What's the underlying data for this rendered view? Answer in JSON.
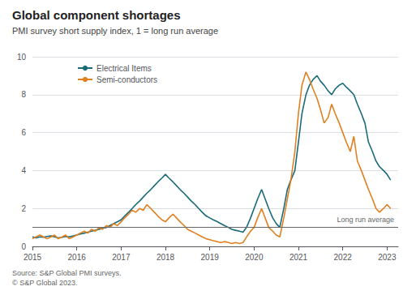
{
  "chart_data": {
    "type": "line",
    "title": "Global component shortages",
    "subtitle": "PMI survey short supply index, 1 = long run average",
    "source": "Source: S&P Global PMI surveys.\n© S&P Global 2023.",
    "annotations": [
      {
        "text": "Long run average",
        "y": 1.0
      }
    ],
    "x": [
      2015.0,
      2015.08,
      2015.17,
      2015.25,
      2015.33,
      2015.42,
      2015.5,
      2015.58,
      2015.67,
      2015.75,
      2015.83,
      2015.92,
      2016.0,
      2016.08,
      2016.17,
      2016.25,
      2016.33,
      2016.42,
      2016.5,
      2016.58,
      2016.67,
      2016.75,
      2016.83,
      2016.92,
      2017.0,
      2017.08,
      2017.17,
      2017.25,
      2017.33,
      2017.42,
      2017.5,
      2017.58,
      2017.67,
      2017.75,
      2017.83,
      2017.92,
      2018.0,
      2018.08,
      2018.17,
      2018.25,
      2018.33,
      2018.42,
      2018.5,
      2018.58,
      2018.67,
      2018.75,
      2018.83,
      2018.92,
      2019.0,
      2019.08,
      2019.17,
      2019.25,
      2019.33,
      2019.42,
      2019.5,
      2019.58,
      2019.67,
      2019.75,
      2019.83,
      2019.92,
      2020.0,
      2020.08,
      2020.17,
      2020.25,
      2020.33,
      2020.42,
      2020.5,
      2020.58,
      2020.67,
      2020.75,
      2020.83,
      2020.92,
      2021.0,
      2021.08,
      2021.17,
      2021.25,
      2021.33,
      2021.42,
      2021.5,
      2021.58,
      2021.67,
      2021.75,
      2021.83,
      2021.92,
      2022.0,
      2022.08,
      2022.17,
      2022.25,
      2022.33,
      2022.42,
      2022.5,
      2022.58,
      2022.67,
      2022.75,
      2022.83,
      2022.92,
      2023.0,
      2023.08
    ],
    "series": [
      {
        "name": "Electrical Items",
        "color": "#1a6b7a",
        "values": [
          0.5,
          0.45,
          0.5,
          0.48,
          0.52,
          0.55,
          0.5,
          0.45,
          0.48,
          0.52,
          0.5,
          0.55,
          0.6,
          0.65,
          0.7,
          0.75,
          0.8,
          0.85,
          0.9,
          0.95,
          1.0,
          1.1,
          1.2,
          1.3,
          1.4,
          1.6,
          1.8,
          2.0,
          2.2,
          2.4,
          2.6,
          2.8,
          3.0,
          3.2,
          3.4,
          3.6,
          3.8,
          3.6,
          3.4,
          3.2,
          3.0,
          2.8,
          2.6,
          2.4,
          2.2,
          2.0,
          1.8,
          1.6,
          1.5,
          1.4,
          1.3,
          1.2,
          1.1,
          1.0,
          0.9,
          0.85,
          0.8,
          0.75,
          1.0,
          1.5,
          2.0,
          2.5,
          3.0,
          2.5,
          2.0,
          1.5,
          1.2,
          1.0,
          2.0,
          3.0,
          3.5,
          4.0,
          5.5,
          7.0,
          8.0,
          8.5,
          8.8,
          9.0,
          8.7,
          8.5,
          8.2,
          8.0,
          8.3,
          8.5,
          8.6,
          8.4,
          8.2,
          8.0,
          7.5,
          7.0,
          6.5,
          5.5,
          5.0,
          4.5,
          4.2,
          4.0,
          3.8,
          3.5
        ]
      },
      {
        "name": "Semi-conductors",
        "color": "#e08020",
        "values": [
          0.4,
          0.5,
          0.6,
          0.5,
          0.4,
          0.5,
          0.6,
          0.4,
          0.5,
          0.6,
          0.4,
          0.5,
          0.6,
          0.7,
          0.8,
          0.7,
          0.9,
          0.8,
          1.0,
          0.9,
          1.1,
          1.0,
          1.2,
          1.1,
          1.3,
          1.5,
          1.7,
          1.9,
          1.8,
          2.0,
          1.9,
          2.2,
          2.0,
          1.8,
          1.6,
          1.4,
          1.3,
          1.5,
          1.7,
          1.5,
          1.3,
          1.1,
          0.9,
          0.8,
          0.7,
          0.6,
          0.5,
          0.4,
          0.35,
          0.3,
          0.25,
          0.2,
          0.25,
          0.2,
          0.15,
          0.2,
          0.15,
          0.2,
          0.5,
          0.8,
          1.0,
          1.5,
          2.0,
          1.5,
          1.0,
          0.8,
          0.6,
          0.5,
          1.5,
          2.5,
          3.5,
          5.0,
          7.0,
          8.5,
          9.2,
          8.8,
          8.3,
          7.8,
          7.2,
          6.5,
          6.8,
          7.5,
          7.0,
          6.5,
          6.0,
          5.5,
          5.0,
          5.8,
          4.5,
          4.0,
          3.5,
          3.0,
          2.5,
          2.0,
          1.8,
          2.0,
          2.2,
          2.0
        ]
      }
    ],
    "xlim": [
      2015.0,
      2023.25
    ],
    "xticks": [
      2015,
      2016,
      2017,
      2018,
      2019,
      2020,
      2021,
      2022,
      2023
    ],
    "ylim": [
      0,
      10
    ],
    "yticks": [
      0,
      2,
      4,
      6,
      8,
      10
    ],
    "grid": true,
    "legend": "upper left"
  }
}
